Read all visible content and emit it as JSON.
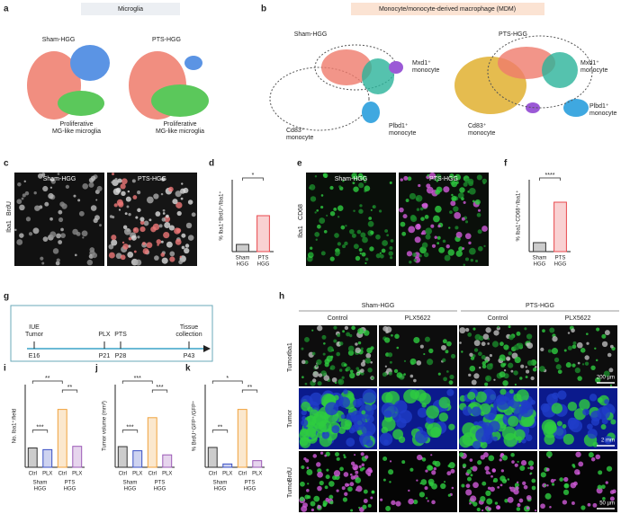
{
  "panels": {
    "a": {
      "letter": "a",
      "title": "Microglia",
      "groups": [
        "Sham-HGG",
        "PTS-HGG"
      ],
      "annotations": [
        [
          "Proliferative",
          "MG-like microglia"
        ],
        [
          "Proliferative",
          "MG-like microglia"
        ]
      ]
    },
    "b": {
      "letter": "b",
      "title": "Monocyte/monocyte-derived macrophage (MDM)",
      "groups": [
        {
          "name": "Sham-HGG",
          "labels": [
            [
              "Mxd1⁺",
              "monocyte"
            ],
            [
              "Plbd1⁺",
              "monocyte"
            ],
            [
              "Cd83⁺",
              "monocyte"
            ]
          ]
        },
        {
          "name": "PTS-HGG",
          "labels": [
            [
              "Mxd1⁺",
              "monocyte"
            ],
            [
              "Plbd1⁺",
              "monocyte"
            ],
            [
              "Cd83⁺",
              "monocyte"
            ]
          ]
        }
      ]
    },
    "c": {
      "letter": "c",
      "groups": [
        "Sham-HGG",
        "PTS-HGG"
      ],
      "stain": [
        "Iba1",
        "BrdU"
      ]
    },
    "d": {
      "letter": "d",
      "ylabel": "% Iba1⁺BrdU⁺/Iba1⁺",
      "categories": [
        [
          "Sham",
          "HGG"
        ],
        [
          "PTS",
          "HGG"
        ]
      ],
      "values": [
        3,
        15
      ],
      "colors": [
        "#333333",
        "#e8484d"
      ],
      "ylim": [
        0,
        30
      ],
      "sig": [
        "*"
      ]
    },
    "e": {
      "letter": "e",
      "groups": [
        "Sham-HGG",
        "PTS-HGG"
      ],
      "stain": [
        "Iba1",
        "CD68"
      ]
    },
    "f": {
      "letter": "f",
      "ylabel": "% Iba1⁺CD68⁺/Iba1⁺",
      "categories": [
        [
          "Sham",
          "HGG"
        ],
        [
          "PTS",
          "HGG"
        ]
      ],
      "values": [
        10,
        55
      ],
      "colors": [
        "#333333",
        "#e8484d"
      ],
      "ylim": [
        0,
        80
      ],
      "sig": [
        "****"
      ]
    },
    "g": {
      "letter": "g",
      "events": [
        {
          "label": [
            "IUE",
            "Tumor"
          ],
          "time": "E16"
        },
        {
          "label": [
            "PLX"
          ],
          "time": "P21"
        },
        {
          "label": [
            "PTS"
          ],
          "time": "P28"
        },
        {
          "label": [
            "Tissue",
            "collection"
          ],
          "time": "P43"
        }
      ]
    },
    "h": {
      "letter": "h",
      "groups": [
        "Sham-HGG",
        "PTS-HGG"
      ],
      "columns": [
        "Control",
        "PLX5622",
        "Control",
        "PLX5622"
      ],
      "rows": [
        {
          "label": [
            "Tumor",
            "Iba1"
          ],
          "scale": "200 µm"
        },
        {
          "label": [
            "Tumor"
          ],
          "scale": "2 mm"
        },
        {
          "label": [
            "Tumor",
            "BrdU"
          ],
          "scale": "50 µm"
        }
      ]
    },
    "i": {
      "letter": "i",
      "ylabel": "No. Iba1⁺/field",
      "categories": [
        "Ctrl",
        "PLX",
        "Ctrl",
        "PLX"
      ],
      "groups": [
        [
          "Sham",
          "HGG"
        ],
        [
          "PTS",
          "HGG"
        ]
      ],
      "values": [
        35,
        32,
        105,
        38
      ],
      "colors": [
        "#333333",
        "#3a4fc4",
        "#f0a23c",
        "#9b59b6"
      ],
      "ylim": [
        0,
        150
      ],
      "sig": [
        "**",
        "***",
        "**"
      ]
    },
    "j": {
      "letter": "j",
      "ylabel": "Tumor volume (mm³)",
      "categories": [
        "Ctrl",
        "PLX",
        "Ctrl",
        "PLX"
      ],
      "groups": [
        [
          "Sham",
          "HGG"
        ],
        [
          "PTS",
          "HGG"
        ]
      ],
      "values": [
        0.5,
        0.4,
        1.2,
        0.3
      ],
      "colors": [
        "#333333",
        "#3a4fc4",
        "#f0a23c",
        "#9b59b6"
      ],
      "ylim": [
        0,
        2
      ],
      "sig": [
        "***",
        "***",
        "***"
      ]
    },
    "k": {
      "letter": "k",
      "ylabel": "% BrdU⁺GFP⁺/GFP⁺",
      "categories": [
        "Ctrl",
        "PLX",
        "Ctrl",
        "PLX"
      ],
      "groups": [
        [
          "Sham",
          "HGG"
        ],
        [
          "PTS",
          "HGG"
        ]
      ],
      "values": [
        12,
        2,
        35,
        4
      ],
      "colors": [
        "#333333",
        "#3a4fc4",
        "#f0a23c",
        "#9b59b6"
      ],
      "ylim": [
        0,
        50
      ],
      "sig": [
        "*",
        "**",
        "**"
      ]
    }
  }
}
